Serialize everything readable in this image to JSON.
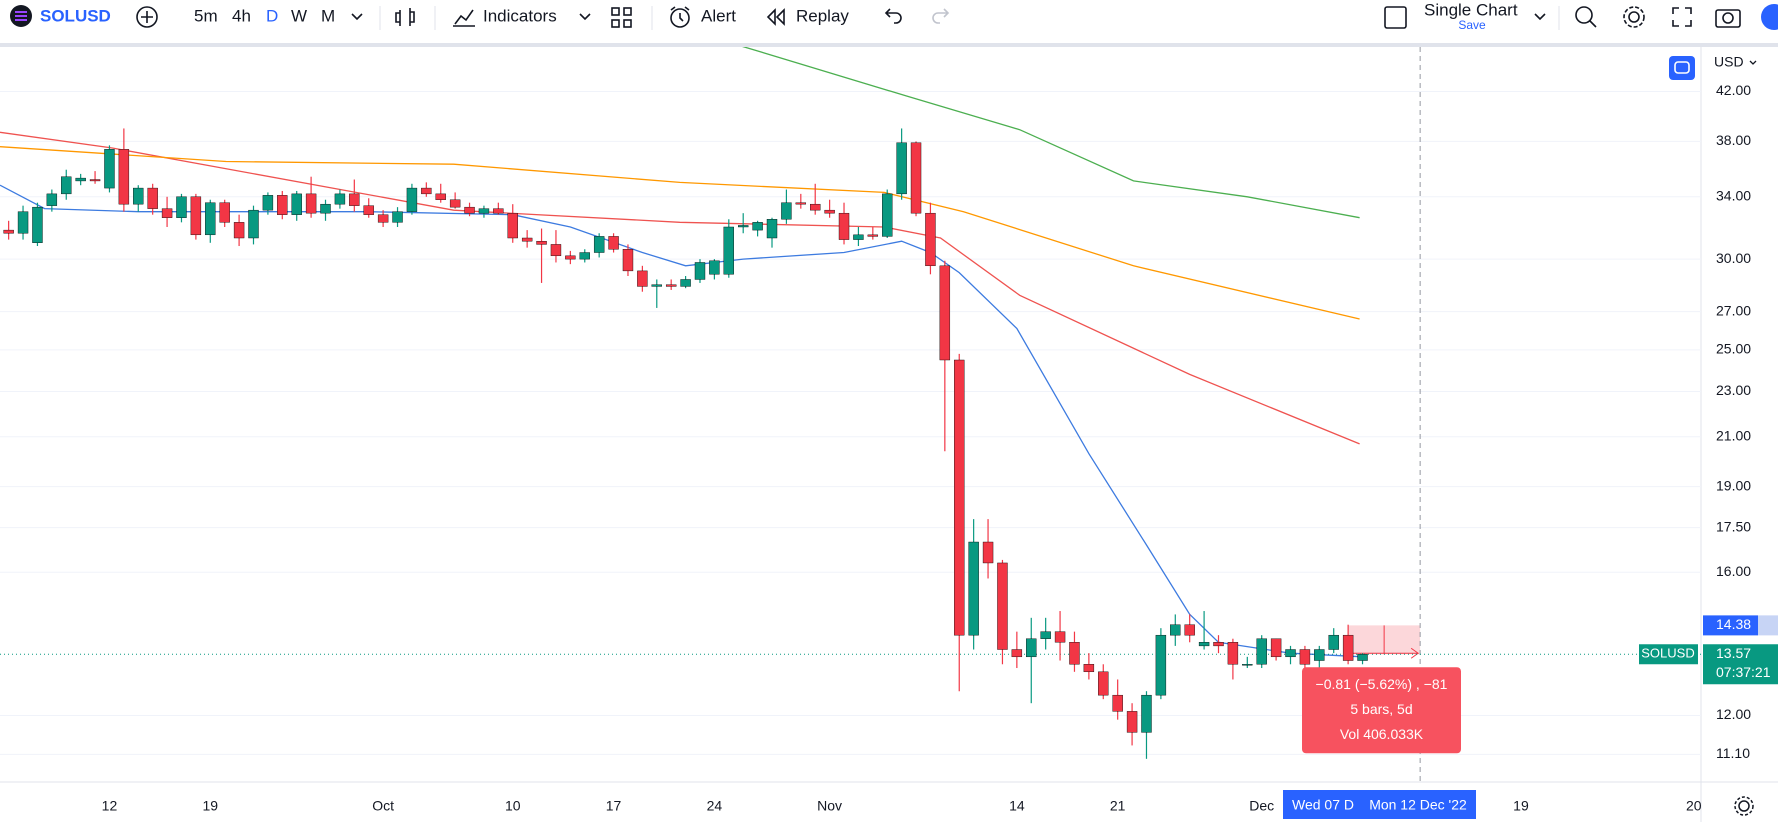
{
  "toolbar": {
    "symbol": "SOLUSD",
    "intervals": [
      "5m",
      "4h",
      "D",
      "W",
      "M"
    ],
    "indicators": "Indicators",
    "alert": "Alert",
    "replay": "Replay",
    "layout": "Single Chart",
    "save": "Save"
  },
  "chart_data": {
    "type": "candlestick",
    "currency": "USD",
    "log_scale": true,
    "grid": true,
    "up_color": "#089981",
    "down_color": "#f23645",
    "xlim": [
      0.4,
      118.5
    ],
    "ylim": [
      10.5,
      46.3
    ],
    "xticks": [
      {
        "value": 8,
        "label": "12"
      },
      {
        "value": 15,
        "label": "19"
      },
      {
        "value": 27,
        "label": "Oct"
      },
      {
        "value": 36,
        "label": "10"
      },
      {
        "value": 43,
        "label": "17"
      },
      {
        "value": 50,
        "label": "24"
      },
      {
        "value": 58,
        "label": "Nov"
      },
      {
        "value": 71,
        "label": "14"
      },
      {
        "value": 78,
        "label": "21"
      },
      {
        "value": 88,
        "label": "Dec"
      },
      {
        "value": 106,
        "label": "19"
      },
      {
        "value": 118,
        "label": "20"
      }
    ],
    "yticks": [
      {
        "value": 42,
        "label": "42.00"
      },
      {
        "value": 38,
        "label": "38.00"
      },
      {
        "value": 34,
        "label": "34.00"
      },
      {
        "value": 30,
        "label": "30.00"
      },
      {
        "value": 27,
        "label": "27.00"
      },
      {
        "value": 25,
        "label": "25.00"
      },
      {
        "value": 23,
        "label": "23.00"
      },
      {
        "value": 21,
        "label": "21.00"
      },
      {
        "value": 19,
        "label": "19.00"
      },
      {
        "value": 17.5,
        "label": "17.50"
      },
      {
        "value": 16,
        "label": "16.00"
      },
      {
        "value": 12,
        "label": "12.00"
      },
      {
        "value": 11.1,
        "label": "11.10"
      }
    ],
    "open": [
      32.4,
      31.8,
      31.6,
      31.0,
      33.4,
      34.2,
      35.1,
      35.2,
      34.6,
      37.4,
      33.5,
      34.6,
      33.2,
      32.6,
      34.0,
      31.5,
      33.6,
      32.3,
      31.3,
      33.1,
      34.1,
      32.8,
      34.2,
      32.9,
      33.5,
      34.2,
      33.4,
      32.8,
      32.3,
      33.0,
      34.6,
      34.2,
      33.8,
      33.3,
      32.9,
      33.2,
      32.9,
      31.3,
      31.1,
      30.9,
      30.2,
      30.0,
      30.4,
      31.4,
      30.6,
      29.3,
      28.4,
      28.5,
      28.4,
      28.8,
      29.1,
      29.1,
      32.0,
      31.8,
      31.3,
      32.5,
      33.6,
      33.5,
      33.1,
      32.9,
      31.2,
      31.5,
      31.4,
      34.2,
      37.9,
      32.9,
      29.6,
      24.5,
      14.1,
      17.0,
      16.3,
      13.7,
      13.5,
      14.0,
      14.2,
      13.9,
      13.3,
      13.1,
      12.5,
      12.1,
      11.6,
      12.5,
      14.1,
      14.4,
      13.8,
      13.9,
      13.9,
      13.3,
      13.3,
      14.0,
      13.5,
      13.7,
      13.4,
      13.7,
      14.1,
      13.4
    ],
    "high": [
      32.8,
      32.4,
      33.4,
      33.6,
      34.5,
      35.9,
      35.6,
      35.8,
      37.7,
      39.0,
      34.8,
      34.9,
      34.0,
      34.2,
      34.2,
      33.8,
      33.8,
      32.8,
      33.4,
      34.3,
      34.4,
      34.4,
      35.4,
      33.8,
      34.5,
      35.2,
      33.9,
      33.1,
      33.3,
      34.9,
      35.0,
      34.9,
      34.3,
      33.6,
      33.4,
      33.6,
      33.5,
      31.8,
      31.9,
      31.8,
      30.5,
      30.6,
      31.6,
      31.6,
      30.9,
      29.6,
      28.8,
      28.8,
      29.0,
      30.0,
      30.0,
      32.5,
      32.9,
      32.4,
      32.6,
      34.5,
      34.2,
      34.9,
      33.8,
      33.6,
      32.0,
      32.0,
      34.5,
      39.0,
      38.0,
      33.6,
      29.9,
      24.8,
      17.8,
      17.8,
      16.4,
      14.2,
      14.6,
      14.6,
      14.8,
      14.2,
      13.6,
      13.3,
      12.9,
      12.3,
      12.6,
      14.3,
      14.7,
      14.7,
      14.8,
      14.1,
      14.0,
      13.5,
      14.1,
      14.0,
      13.8,
      13.8,
      13.8,
      14.3,
      14.4,
      13.6
    ],
    "low": [
      31.6,
      31.2,
      31.2,
      30.8,
      33.0,
      33.8,
      34.8,
      34.9,
      34.3,
      33.0,
      33.0,
      32.8,
      32.0,
      32.3,
      31.2,
      31.0,
      32.0,
      30.8,
      30.9,
      32.8,
      32.5,
      32.4,
      32.6,
      32.4,
      33.2,
      33.0,
      32.6,
      32.0,
      32.0,
      32.8,
      34.0,
      33.6,
      33.2,
      32.7,
      32.6,
      32.8,
      31.0,
      30.7,
      28.6,
      29.8,
      29.7,
      29.8,
      30.1,
      30.4,
      29.0,
      28.1,
      27.2,
      28.2,
      28.3,
      28.6,
      28.8,
      28.9,
      31.6,
      31.4,
      30.7,
      32.2,
      33.2,
      32.8,
      32.6,
      30.9,
      30.8,
      31.2,
      31.3,
      33.8,
      32.7,
      29.1,
      20.4,
      12.6,
      13.7,
      15.8,
      13.3,
      13.2,
      12.3,
      13.7,
      13.4,
      13.1,
      12.9,
      12.4,
      11.9,
      11.3,
      11.0,
      12.4,
      13.8,
      13.9,
      13.7,
      13.6,
      12.9,
      13.2,
      13.2,
      13.4,
      13.3,
      13.2,
      13.2,
      13.6,
      13.3,
      13.3
    ],
    "close": [
      31.8,
      31.6,
      33.0,
      33.3,
      34.2,
      35.4,
      35.3,
      35.1,
      37.4,
      33.5,
      34.6,
      33.2,
      32.6,
      34.0,
      31.5,
      33.6,
      32.3,
      31.3,
      33.1,
      34.1,
      32.8,
      34.2,
      32.9,
      33.5,
      34.2,
      33.4,
      32.8,
      32.3,
      33.0,
      34.6,
      34.2,
      33.8,
      33.3,
      32.9,
      33.2,
      32.9,
      31.3,
      31.1,
      30.9,
      30.2,
      30.0,
      30.4,
      31.4,
      30.6,
      29.3,
      28.4,
      28.5,
      28.4,
      28.8,
      29.8,
      29.9,
      32.0,
      32.1,
      32.3,
      32.5,
      33.6,
      33.5,
      33.1,
      32.9,
      31.2,
      31.5,
      31.4,
      34.2,
      37.9,
      32.9,
      29.6,
      24.5,
      14.1,
      17.0,
      16.3,
      13.7,
      13.5,
      14.0,
      14.2,
      13.9,
      13.3,
      13.1,
      12.5,
      12.1,
      11.6,
      12.5,
      14.1,
      14.4,
      14.1,
      13.9,
      13.8,
      13.3,
      13.3,
      14.0,
      13.5,
      13.7,
      13.3,
      13.7,
      14.1,
      13.4,
      13.57
    ],
    "series": [
      {
        "color": "#3d7be0",
        "x": [
          0.4,
          3.5,
          10,
          26,
          36,
          40,
          45,
          48,
          52,
          59,
          63,
          65,
          67,
          71,
          76,
          80,
          83,
          85,
          90,
          95
        ],
        "values": [
          34.8,
          33.2,
          33.0,
          33.0,
          32.8,
          32.0,
          30.4,
          29.6,
          30.0,
          30.4,
          31.1,
          30.4,
          29.2,
          26.1,
          20.3,
          16.9,
          14.7,
          13.9,
          13.6,
          13.5
        ]
      },
      {
        "color": "#ef5350",
        "x": [
          0.4,
          8.2,
          31.9,
          47.6,
          61.8,
          65.7,
          71.2,
          83.0,
          94.8
        ],
        "values": [
          38.7,
          37.5,
          33.1,
          32.3,
          32.0,
          31.3,
          27.9,
          23.8,
          20.7
        ]
      },
      {
        "color": "#ff9800",
        "x": [
          0.4,
          16.1,
          31.9,
          47.6,
          61.8,
          67.3,
          79.1,
          94.8
        ],
        "values": [
          37.6,
          36.5,
          36.3,
          35.0,
          34.3,
          33.0,
          29.6,
          26.6
        ]
      },
      {
        "color": "#4caf50",
        "x": [
          51.9,
          63.4,
          71.2,
          79.1,
          87.0,
          94.8
        ],
        "values": [
          46.0,
          41.6,
          38.9,
          35.1,
          34.0,
          32.6
        ]
      }
    ],
    "last_price": 13.57,
    "symbol_label": "SOLUSD",
    "countdown": "07:37:21",
    "measure": {
      "price": 14.38,
      "bars": [
        94,
        99
      ],
      "lines": [
        "−0.81 (−5.62%) , −81",
        "5 bars, 5d",
        "Vol 406.033K"
      ]
    },
    "crosshair_labels": [
      "Wed 07 D",
      "Mon 12 Dec '22"
    ]
  }
}
